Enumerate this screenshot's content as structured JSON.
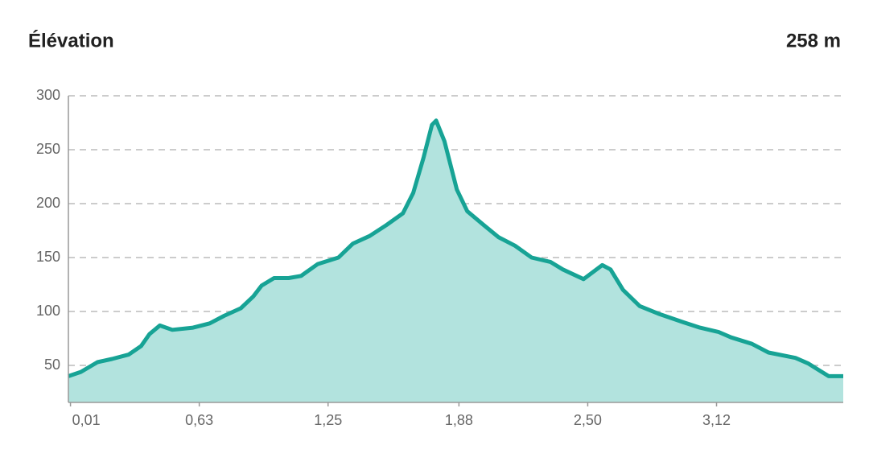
{
  "header": {
    "title": "Élévation",
    "value": "258 m"
  },
  "chart_data": {
    "type": "area",
    "x": [
      0,
      0.06,
      0.14,
      0.21,
      0.29,
      0.35,
      0.39,
      0.44,
      0.5,
      0.6,
      0.68,
      0.75,
      0.83,
      0.89,
      0.93,
      0.99,
      1.06,
      1.12,
      1.2,
      1.3,
      1.37,
      1.45,
      1.53,
      1.61,
      1.66,
      1.71,
      1.75,
      1.77,
      1.81,
      1.87,
      1.92,
      2.0,
      2.07,
      2.15,
      2.23,
      2.32,
      2.38,
      2.48,
      2.57,
      2.61,
      2.67,
      2.75,
      2.84,
      2.96,
      3.04,
      3.13,
      3.19,
      3.29,
      3.37,
      3.5,
      3.56,
      3.66,
      3.73
    ],
    "values": [
      40,
      44,
      53,
      56,
      60,
      68,
      79,
      87,
      83,
      85,
      89,
      96,
      103,
      114,
      124,
      131,
      131,
      133,
      144,
      150,
      163,
      170,
      180,
      191,
      210,
      243,
      273,
      277,
      258,
      213,
      193,
      180,
      169,
      161,
      150,
      146,
      139,
      130,
      143,
      139,
      120,
      105,
      98,
      90,
      85,
      81,
      76,
      70,
      62,
      57,
      52,
      40,
      40
    ],
    "color": "#17a395",
    "fill": "#b2e3de",
    "xlim": [
      0,
      3.73
    ],
    "xticks": [
      {
        "value": 0.01,
        "label": "0,01"
      },
      {
        "value": 0.63,
        "label": "0,63"
      },
      {
        "value": 1.25,
        "label": "1,25"
      },
      {
        "value": 1.88,
        "label": "1,88"
      },
      {
        "value": 2.5,
        "label": "2,50"
      },
      {
        "value": 3.12,
        "label": "3,12"
      }
    ],
    "ylim": [
      15.7,
      300
    ],
    "yticks": [
      50,
      100,
      150,
      200,
      250,
      300
    ],
    "grid": true
  }
}
